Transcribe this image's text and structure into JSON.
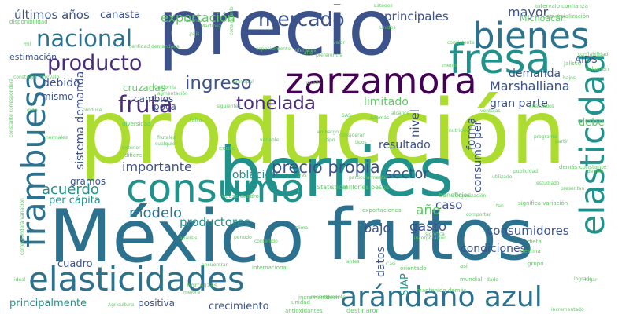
{
  "palette": [
    "#3b528b",
    "#2c728e",
    "#21918c",
    "#28ae80",
    "#5ec962",
    "#addc30",
    "#fde725",
    "#440154",
    "#472d7b"
  ],
  "words": [
    {
      "text": "precio",
      "color": "#3b528b"
    },
    {
      "text": "producción",
      "color": "#addc30"
    },
    {
      "text": "México",
      "color": "#2c728e"
    },
    {
      "text": "berries",
      "color": "#21918c"
    },
    {
      "text": "frutos",
      "color": "#2c728e"
    },
    {
      "text": "zarzamora",
      "color": "#440154"
    },
    {
      "text": "bienes",
      "color": "#2c728e"
    },
    {
      "text": "fresa",
      "color": "#21918c"
    },
    {
      "text": "elasticidades",
      "color": "#2c728e"
    },
    {
      "text": "consumo",
      "color": "#21918c"
    },
    {
      "text": "arándano azul",
      "color": "#2c728e"
    },
    {
      "text": "frambuesa",
      "color": "#2c728e"
    },
    {
      "text": "elasticidad",
      "color": "#21918c"
    },
    {
      "text": "nacional",
      "color": "#2c728e"
    },
    {
      "text": "producto",
      "color": "#472d7b"
    },
    {
      "text": "fruta",
      "color": "#472d7b"
    },
    {
      "text": "ingreso",
      "color": "#3b528b"
    },
    {
      "text": "tonelada",
      "color": "#472d7b"
    },
    {
      "text": "mercado",
      "color": "#3b528b"
    },
    {
      "text": "precio propia",
      "color": "#3b528b"
    },
    {
      "text": "importante",
      "color": "#3b528b"
    },
    {
      "text": "acuerdo",
      "color": "#21918c"
    },
    {
      "text": "modelo",
      "color": "#2c728e"
    },
    {
      "text": "gasto",
      "color": "#3b528b"
    },
    {
      "text": "consumidores",
      "color": "#3b528b"
    },
    {
      "text": "sector",
      "color": "#3b528b"
    },
    {
      "text": "Marshalliana",
      "color": "#3b528b"
    },
    {
      "text": "demanda",
      "color": "#3b528b"
    },
    {
      "text": "gran parte",
      "color": "#3b528b"
    },
    {
      "text": "principales",
      "color": "#3b528b"
    },
    {
      "text": "exportación",
      "color": "#5ec962"
    },
    {
      "text": "últimos años",
      "color": "#3b528b"
    },
    {
      "text": "canasta",
      "color": "#3b528b"
    },
    {
      "text": "mayor",
      "color": "#3b528b"
    },
    {
      "text": "Michoacán",
      "color": "#5ec962"
    },
    {
      "text": "debido",
      "color": "#3b528b"
    },
    {
      "text": "cambios",
      "color": "#3b528b"
    },
    {
      "text": "cruzadas",
      "color": "#5ec962"
    },
    {
      "text": "mismo",
      "color": "#3b528b"
    },
    {
      "text": "sistema demanda",
      "color": "#3b528b"
    },
    {
      "text": "poca",
      "color": "#3b528b"
    },
    {
      "text": "limitado",
      "color": "#5ec962"
    },
    {
      "text": "nivel",
      "color": "#3b528b"
    },
    {
      "text": "forma",
      "color": "#3b528b"
    },
    {
      "text": "consumo per",
      "color": "#3b528b"
    },
    {
      "text": "resultado",
      "color": "#3b528b"
    },
    {
      "text": "debe",
      "color": "#5ec962"
    },
    {
      "text": "población",
      "color": "#21918c"
    },
    {
      "text": "productores",
      "color": "#21918c"
    },
    {
      "text": "caso",
      "color": "#3b528b"
    },
    {
      "text": "año",
      "color": "#5ec962"
    },
    {
      "text": "bajo",
      "color": "#3b528b"
    },
    {
      "text": "condiciones",
      "color": "#3b528b"
    },
    {
      "text": "datos",
      "color": "#3b528b"
    },
    {
      "text": "SIAP",
      "color": "#21918c"
    },
    {
      "text": "per cápita",
      "color": "#21918c"
    },
    {
      "text": "gramos",
      "color": "#3b528b"
    },
    {
      "text": "cuadro",
      "color": "#3b528b"
    },
    {
      "text": "principalmente",
      "color": "#21918c"
    },
    {
      "text": "positiva",
      "color": "#3b528b"
    },
    {
      "text": "crecimiento",
      "color": "#3b528b"
    },
    {
      "text": "estimación",
      "color": "#3b528b"
    },
    {
      "text": "AIDS",
      "color": "#3b528b"
    },
    {
      "text": "Estados",
      "color": "#5ec962"
    },
    {
      "text": "Unidos",
      "color": "#5ec962"
    },
    {
      "text": "cantidad demandada",
      "color": "#5ec962"
    },
    {
      "text": "alimentación",
      "color": "#5ec962"
    },
    {
      "text": "intervalo confianza",
      "color": "#5ec962"
    },
    {
      "text": "comercialización",
      "color": "#5ec962"
    },
    {
      "text": "disponibilidad",
      "color": "#5ec962"
    },
    {
      "text": "Jalisco",
      "color": "#5ec962"
    },
    {
      "text": "volumen",
      "color": "#5ec962"
    },
    {
      "text": "beneficios",
      "color": "#5ec962"
    },
    {
      "text": "millones pesos",
      "color": "#5ec962"
    },
    {
      "text": "Statistical",
      "color": "#5ec962"
    },
    {
      "text": "mantenido demás",
      "color": "#5ec962"
    },
    {
      "text": "incremento",
      "color": "#5ec962"
    },
    {
      "text": "significa variación",
      "color": "#5ec962"
    },
    {
      "text": "demás constante",
      "color": "#5ec962"
    },
    {
      "text": "hortalizas",
      "color": "#5ec962"
    },
    {
      "text": "destinaron",
      "color": "#5ec962"
    },
    {
      "text": "orientado",
      "color": "#5ec962"
    },
    {
      "text": "exportaciones",
      "color": "#5ec962"
    },
    {
      "text": "internacional",
      "color": "#5ec962"
    },
    {
      "text": "diversidad",
      "color": "#5ec962"
    },
    {
      "text": "existe",
      "color": "#5ec962"
    },
    {
      "text": "difiere",
      "color": "#5ec962"
    },
    {
      "text": "falta",
      "color": "#5ec962"
    },
    {
      "text": "vease cuadro",
      "color": "#5ec962"
    },
    {
      "text": "Agricultura",
      "color": "#5ec962"
    },
    {
      "text": "antioxidantes",
      "color": "#5ec962"
    },
    {
      "text": "incrementado",
      "color": "#5ec962"
    },
    {
      "text": "mundial",
      "color": "#5ec962"
    },
    {
      "text": "así",
      "color": "#5ec962"
    },
    {
      "text": "período",
      "color": "#5ec962"
    },
    {
      "text": "análisis",
      "color": "#5ec962"
    },
    {
      "text": "encuentran",
      "color": "#5ec962"
    },
    {
      "text": "clima",
      "color": "#5ec962"
    },
    {
      "text": "contenido",
      "color": "#5ec962"
    },
    {
      "text": "unidad",
      "color": "#5ec962"
    },
    {
      "text": "decir",
      "color": "#5ec962"
    },
    {
      "text": "significa",
      "color": "#5ec962"
    },
    {
      "text": "incorporación",
      "color": "#5ec962"
    },
    {
      "text": "destina",
      "color": "#5ec962"
    },
    {
      "text": "dieta",
      "color": "#5ec962"
    },
    {
      "text": "grupo",
      "color": "#5ec962"
    },
    {
      "text": "siguientes",
      "color": "#5ec962"
    },
    {
      "text": "considerado",
      "color": "#5ec962"
    },
    {
      "text": "frutales",
      "color": "#5ec962"
    },
    {
      "text": "cualquier",
      "color": "#5ec962"
    },
    {
      "text": "principal",
      "color": "#5ec962"
    },
    {
      "text": "construyó intervalo",
      "color": "#5ec962"
    },
    {
      "text": "especialmente",
      "color": "#5ec962"
    },
    {
      "text": "inferiores",
      "color": "#5ec962"
    },
    {
      "text": "preferencia",
      "color": "#5ec962"
    },
    {
      "text": "valor",
      "color": "#5ec962"
    },
    {
      "text": "alto",
      "color": "#5ec962"
    },
    {
      "text": "California",
      "color": "#5ec962"
    },
    {
      "text": "demás",
      "color": "#5ec962"
    },
    {
      "text": "consideran",
      "color": "#5ec962"
    },
    {
      "text": "tipo",
      "color": "#5ec962"
    },
    {
      "text": "tres",
      "color": "#5ec962"
    },
    {
      "text": "particularmente",
      "color": "#5ec962"
    },
    {
      "text": "utilizado",
      "color": "#5ec962"
    },
    {
      "text": "publicidad",
      "color": "#5ec962"
    },
    {
      "text": "estudiado",
      "color": "#5ec962"
    },
    {
      "text": "presentan",
      "color": "#5ec962"
    },
    {
      "text": "partir",
      "color": "#5ec962"
    },
    {
      "text": "alcance",
      "color": "#5ec962"
    },
    {
      "text": "variable",
      "color": "#5ec962"
    },
    {
      "text": "Organización",
      "color": "#5ec962"
    },
    {
      "text": "comportan",
      "color": "#5ec962"
    },
    {
      "text": "logrado",
      "color": "#5ec962"
    },
    {
      "text": "Martínez",
      "color": "#5ec962"
    },
    {
      "text": "razones",
      "color": "#5ec962"
    },
    {
      "text": "país",
      "color": "#5ec962"
    },
    {
      "text": "constante corresponderá",
      "color": "#5ec962"
    },
    {
      "text": "corresponderá variación",
      "color": "#5ec962"
    },
    {
      "text": "ideal",
      "color": "#5ec962"
    },
    {
      "text": "normales",
      "color": "#5ec962"
    },
    {
      "text": "exterior",
      "color": "#5ec962"
    },
    {
      "text": "gran",
      "color": "#5ec962"
    },
    {
      "text": "produce",
      "color": "#5ec962"
    },
    {
      "text": "embargo",
      "color": "#5ec962"
    },
    {
      "text": "puede",
      "color": "#5ec962"
    },
    {
      "text": "Además",
      "color": "#5ec962"
    },
    {
      "text": "Casi",
      "color": "#5ec962"
    },
    {
      "text": "mejora",
      "color": "#5ec962"
    },
    {
      "text": "mil",
      "color": "#5ec962"
    },
    {
      "text": "SAS",
      "color": "#5ec962"
    },
    {
      "text": "tan",
      "color": "#5ec962"
    },
    {
      "text": "tipos",
      "color": "#5ec962"
    },
    {
      "text": "lugar",
      "color": "#5ec962"
    },
    {
      "text": "dado",
      "color": "#5ec962"
    },
    {
      "text": "antes",
      "color": "#5ec962"
    },
    {
      "text": "recientemente",
      "color": "#5ec962"
    },
    {
      "text": "programa",
      "color": "#5ec962"
    },
    {
      "text": "ventajas",
      "color": "#5ec962"
    },
    {
      "text": "analizados",
      "color": "#5ec962"
    },
    {
      "text": "confiabilidad",
      "color": "#5ec962"
    },
    {
      "text": "bajos",
      "color": "#5ec962"
    },
    {
      "text": "nutrición",
      "color": "#5ec962"
    },
    {
      "text": "consistente",
      "color": "#5ec962"
    },
    {
      "text": "menor",
      "color": "#5ec962"
    }
  ]
}
